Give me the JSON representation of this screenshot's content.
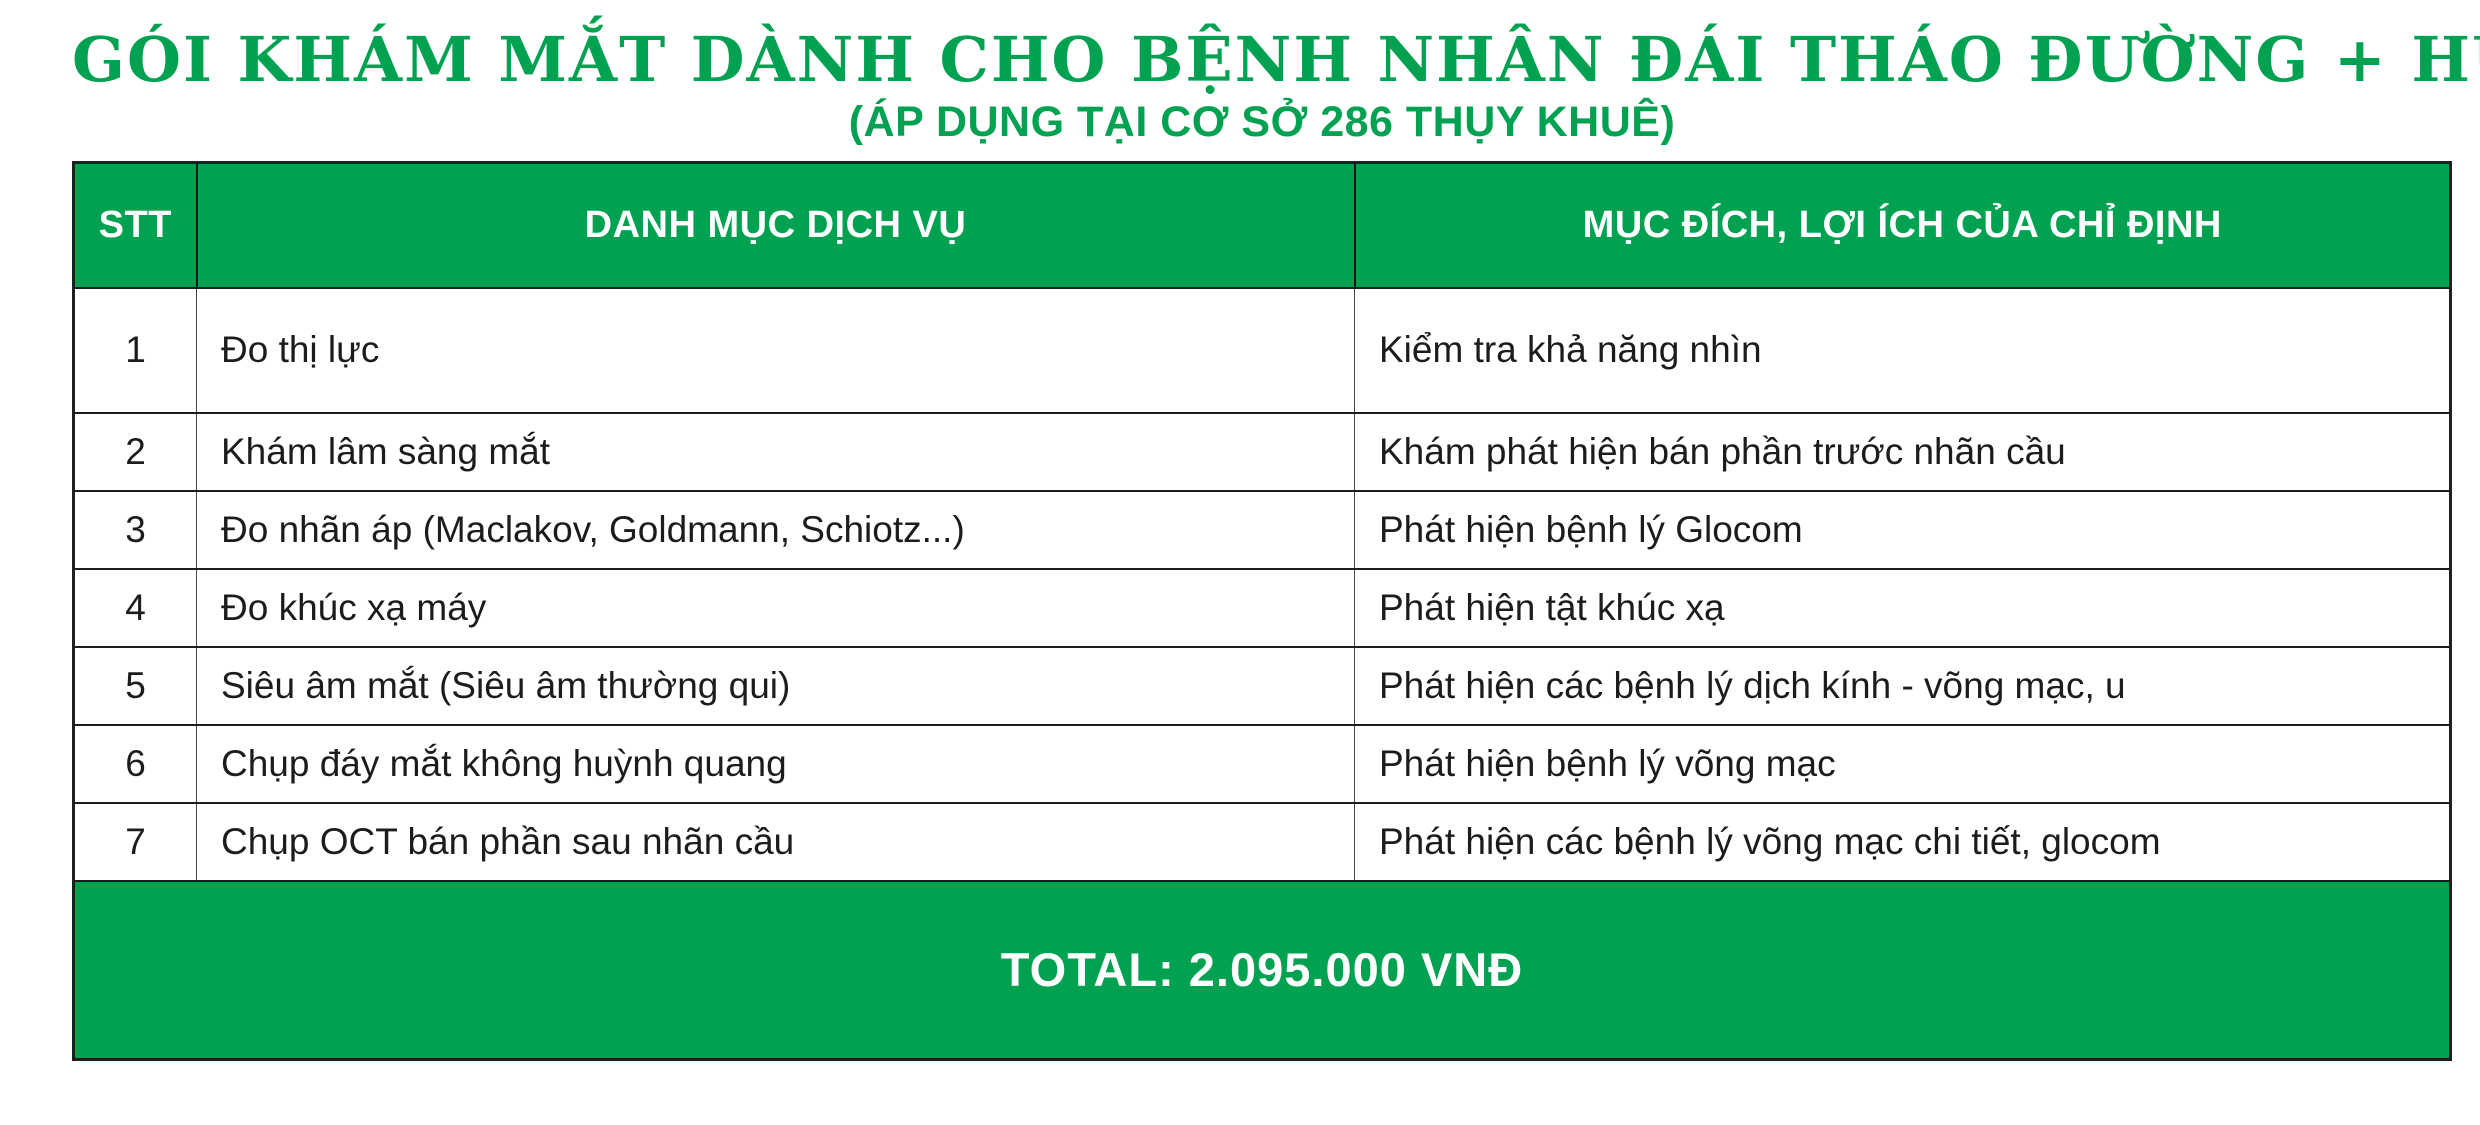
{
  "header": {
    "title": "GÓI KHÁM MẮT DÀNH CHO BỆNH NHÂN ĐÁI THÁO ĐƯỜNG + HUYẾT ÁP",
    "subtitle": "(ÁP DỤNG TẠI CƠ SỞ 286 THỤY KHUÊ)"
  },
  "colors": {
    "green": "#00a251",
    "header_text": "#ffffff",
    "body_text": "#1c1c1c"
  },
  "table": {
    "columns": [
      "STT",
      "DANH MỤC DỊCH VỤ",
      "MỤC ĐÍCH, LỢI ÍCH CỦA CHỈ ĐỊNH"
    ],
    "rows": [
      {
        "stt": "1",
        "service": "Đo thị lực",
        "purpose": "Kiểm tra khả năng nhìn"
      },
      {
        "stt": "2",
        "service": "Khám lâm sàng mắt",
        "purpose": "Khám phát hiện bán phần trước nhãn cầu"
      },
      {
        "stt": "3",
        "service": "Đo nhãn áp (Maclakov, Goldmann, Schiotz...)",
        "purpose": "Phát hiện bệnh lý Glocom"
      },
      {
        "stt": "4",
        "service": "Đo khúc xạ máy",
        "purpose": "Phát hiện tật khúc xạ"
      },
      {
        "stt": "5",
        "service": "Siêu âm mắt (Siêu âm thường qui)",
        "purpose": "Phát hiện các bệnh lý dịch kính - võng mạc, u"
      },
      {
        "stt": "6",
        "service": "Chụp đáy mắt không huỳnh quang",
        "purpose": "Phát hiện bệnh lý võng mạc"
      },
      {
        "stt": "7",
        "service": "Chụp OCT bán phần sau nhãn cầu",
        "purpose": "Phát hiện các bệnh lý võng mạc chi tiết, glocom"
      }
    ],
    "total_label": "TOTAL: 2.095.000 VNĐ"
  }
}
